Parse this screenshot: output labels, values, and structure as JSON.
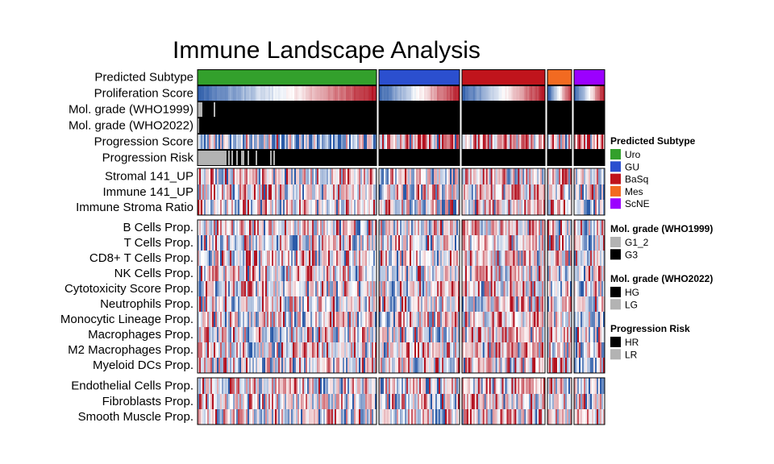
{
  "chart_data": {
    "type": "heatmap",
    "title": "Immune Landscape Analysis",
    "column_groups": [
      {
        "name": "Uro",
        "n": 111,
        "color": "#33a02c"
      },
      {
        "name": "GU",
        "n": 50,
        "color": "#2b4fcf"
      },
      {
        "name": "BaSq",
        "n": 52,
        "color": "#c0141c"
      },
      {
        "name": "Mes",
        "n": 15,
        "color": "#f26a21"
      },
      {
        "name": "ScNE",
        "n": 19,
        "color": "#9b00ff"
      }
    ],
    "row_blocks": [
      {
        "rows": [
          {
            "label": "Predicted Subtype",
            "kind": "subtype"
          },
          {
            "label": "Proliferation Score",
            "kind": "gradient"
          },
          {
            "label": "Mol. grade (WHO1999)",
            "kind": "grade1999"
          },
          {
            "label": "Mol. grade (WHO2022)",
            "kind": "grade2022"
          },
          {
            "label": "Progression Score",
            "kind": "progression"
          },
          {
            "label": "Progression Risk",
            "kind": "risk"
          }
        ]
      },
      {
        "rows": [
          {
            "label": "Stromal 141_UP",
            "kind": "heat"
          },
          {
            "label": "Immune 141_UP",
            "kind": "heat"
          },
          {
            "label": "Immune Stroma Ratio",
            "kind": "heat"
          }
        ]
      },
      {
        "rows": [
          {
            "label": "B Cells Prop.",
            "kind": "heat"
          },
          {
            "label": "T Cells Prop.",
            "kind": "heat"
          },
          {
            "label": "CD8+ T Cells Prop.",
            "kind": "heat"
          },
          {
            "label": "NK Cells Prop.",
            "kind": "heat"
          },
          {
            "label": "Cytotoxicity Score Prop.",
            "kind": "heat"
          },
          {
            "label": "Neutrophils Prop.",
            "kind": "heat"
          },
          {
            "label": "Monocytic Lineage Prop.",
            "kind": "heat"
          },
          {
            "label": "Macrophages Prop.",
            "kind": "heat"
          },
          {
            "label": "M2 Macrophages Prop.",
            "kind": "heat"
          },
          {
            "label": "Myeloid DCs Prop.",
            "kind": "heat"
          }
        ]
      },
      {
        "rows": [
          {
            "label": "Endothelial Cells Prop.",
            "kind": "heat"
          },
          {
            "label": "Fibroblasts Prop.",
            "kind": "heat"
          },
          {
            "label": "Smooth Muscle Prop.",
            "kind": "heat"
          }
        ]
      }
    ],
    "color_scale": {
      "low": "#2a5aa8",
      "mid": "#ffffff",
      "high": "#b3101f"
    },
    "legends": [
      {
        "title": "Predicted Subtype",
        "items": [
          {
            "label": "Uro",
            "color": "#33a02c"
          },
          {
            "label": "GU",
            "color": "#2b4fcf"
          },
          {
            "label": "BaSq",
            "color": "#c0141c"
          },
          {
            "label": "Mes",
            "color": "#f26a21"
          },
          {
            "label": "ScNE",
            "color": "#9b00ff"
          }
        ]
      },
      {
        "title": "Mol. grade (WHO1999)",
        "items": [
          {
            "label": "G1_2",
            "color": "#b3b3b3"
          },
          {
            "label": "G3",
            "color": "#000000"
          }
        ]
      },
      {
        "title": "Mol. grade (WHO2022)",
        "items": [
          {
            "label": "HG",
            "color": "#000000"
          },
          {
            "label": "LG",
            "color": "#b3b3b3"
          }
        ]
      },
      {
        "title": "Progression Risk",
        "items": [
          {
            "label": "HR",
            "color": "#000000"
          },
          {
            "label": "LR",
            "color": "#b3b3b3"
          }
        ]
      }
    ]
  }
}
